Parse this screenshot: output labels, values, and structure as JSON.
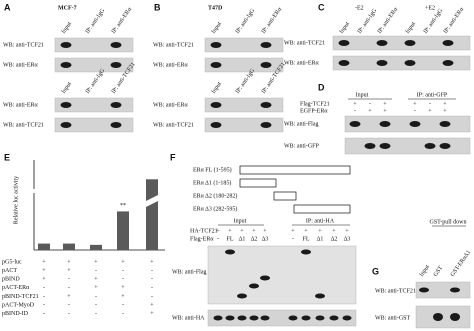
{
  "panels": {
    "A": {
      "label": "A",
      "cell_line": "MCF-7",
      "top": {
        "lanes": [
          "Input",
          "IP: anti-IgG",
          "IP: anti-ERα"
        ],
        "blots": [
          "WB: anti-TCF21",
          "WB: anti-ERα"
        ]
      },
      "bottom": {
        "lanes": [
          "Input",
          "IP: anti-IgG",
          "IP: anti-TCF21"
        ],
        "blots": [
          "WB: anti-ERα",
          "WB: anti-TCF21"
        ]
      }
    },
    "B": {
      "label": "B",
      "cell_line": "T47D",
      "top": {
        "lanes": [
          "Input",
          "IP: anti-IgG",
          "IP: anti-ERα"
        ],
        "blots": [
          "WB: anti-TCF21",
          "WB: anti-ERα"
        ]
      },
      "bottom": {
        "lanes": [
          "Input",
          "IP: anti-IgG",
          "IP: anti-TCF21"
        ],
        "blots": [
          "WB: anti-ERα",
          "WB: anti-TCF21"
        ]
      }
    },
    "C": {
      "label": "C",
      "conditions": [
        "-E2",
        "+E2"
      ],
      "lanes": [
        "Input",
        "IP: anti-IgG",
        "IP: anti-ERα",
        "Input",
        "IP: anti-IgG",
        "IP: anti-ERα"
      ],
      "blots": [
        "WB: anti-TCF21",
        "WB: anti-ERα"
      ]
    },
    "D": {
      "label": "D",
      "groups": [
        "Input",
        "IP: anti-GFP"
      ],
      "rows": [
        {
          "name": "Flag-TCF21",
          "signs": [
            "+",
            "-",
            "+",
            "+",
            "-",
            "+"
          ]
        },
        {
          "name": "EGFP-ERα",
          "signs": [
            "-",
            "+",
            "+",
            "-",
            "+",
            "+"
          ]
        }
      ],
      "blots": [
        "WB: anti-Flag",
        "WB: anti-GFP"
      ]
    },
    "E": {
      "label": "E",
      "type": "bar",
      "y_label": "Relative luc activity",
      "values": [
        1,
        1,
        0.8,
        6,
        11
      ],
      "ylim": [
        0,
        14
      ],
      "annotation": "**",
      "rows": [
        {
          "name": "pG5-luc",
          "signs": [
            "+",
            "+",
            "+",
            "+",
            "+"
          ]
        },
        {
          "name": "pACT",
          "signs": [
            "+",
            "+",
            "-",
            "-",
            "-"
          ]
        },
        {
          "name": "pBIND",
          "signs": [
            "+",
            "-",
            "+",
            "-",
            "-"
          ]
        },
        {
          "name": "pACT-ERα",
          "signs": [
            "-",
            "-",
            "+",
            "+",
            "-"
          ]
        },
        {
          "name": "pBIND-TCF21",
          "signs": [
            "-",
            "+",
            "-",
            "+",
            "-"
          ]
        },
        {
          "name": "pACT-MyoD",
          "signs": [
            "-",
            "-",
            "-",
            "-",
            "+"
          ]
        },
        {
          "name": "pBIND-ID",
          "signs": [
            "-",
            "-",
            "-",
            "-",
            "+"
          ]
        }
      ]
    },
    "F": {
      "label": "F",
      "constructs": [
        "ERα FL (1-595)",
        "ERα Δ1 (1-185)",
        "ERα Δ2 (180-282)",
        "ERα Δ3 (282-595)"
      ],
      "groups": [
        "Input",
        "IP: anti-HA"
      ],
      "rows": [
        {
          "name": "HA-TCF21",
          "signs": [
            "+",
            "+",
            "+",
            "+",
            "+",
            "+",
            "+",
            "+",
            "+",
            "+"
          ]
        },
        {
          "name": "Flag-ERα",
          "signs": [
            "-",
            "FL",
            "Δ1",
            "Δ2",
            "Δ3",
            "-",
            "FL",
            "Δ1",
            "Δ2",
            "Δ3"
          ]
        }
      ],
      "blots": [
        "WB: anti-Flag",
        "WB: anti-HA"
      ]
    },
    "G": {
      "label": "G",
      "group": "GST-pull down",
      "lanes": [
        "Input",
        "GST",
        "GST-ERαΔ1"
      ],
      "blots": [
        "WB: anti-TCF21",
        "WB: anti-GST"
      ]
    }
  }
}
